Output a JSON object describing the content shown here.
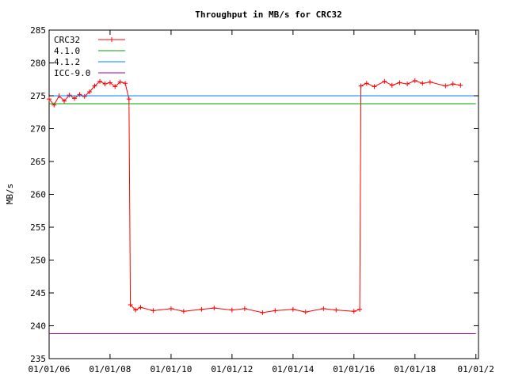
{
  "chart_data": {
    "type": "scatter",
    "title": "Throughput in MB/s for CRC32",
    "xlabel": "",
    "ylabel": "MB/s",
    "ylim": [
      235,
      285
    ],
    "xlim": [
      "2006-01-01",
      "2020-02-01"
    ],
    "y_ticks": [
      235,
      240,
      245,
      250,
      255,
      260,
      265,
      270,
      275,
      280,
      285
    ],
    "x_ticks": [
      {
        "label": "01/01/06",
        "value": "2006-01-01"
      },
      {
        "label": "01/01/08",
        "value": "2008-01-01"
      },
      {
        "label": "01/01/10",
        "value": "2010-01-01"
      },
      {
        "label": "01/01/12",
        "value": "2012-01-01"
      },
      {
        "label": "01/01/14",
        "value": "2014-01-01"
      },
      {
        "label": "01/01/16",
        "value": "2016-01-01"
      },
      {
        "label": "01/01/18",
        "value": "2018-01-01"
      },
      {
        "label": "01/01/2",
        "value": "2020-01-01"
      }
    ],
    "grid": false,
    "legend_position": "top-left",
    "series": [
      {
        "name": "CRC32",
        "color": "#ff0000",
        "style": "linespoints",
        "points": [
          [
            "2006-01-01",
            274.5
          ],
          [
            "2006-03-01",
            273.6
          ],
          [
            "2006-05-01",
            275.0
          ],
          [
            "2006-07-01",
            274.2
          ],
          [
            "2006-09-01",
            275.1
          ],
          [
            "2006-11-01",
            274.6
          ],
          [
            "2007-01-01",
            275.2
          ],
          [
            "2007-03-01",
            274.9
          ],
          [
            "2007-05-01",
            275.6
          ],
          [
            "2007-07-01",
            276.5
          ],
          [
            "2007-09-01",
            277.2
          ],
          [
            "2007-11-01",
            276.8
          ],
          [
            "2008-01-01",
            277.0
          ],
          [
            "2008-03-01",
            276.4
          ],
          [
            "2008-05-01",
            277.1
          ],
          [
            "2008-07-01",
            276.9
          ],
          [
            "2008-08-15",
            274.5
          ],
          [
            "2008-09-01",
            243.2
          ],
          [
            "2008-11-01",
            242.4
          ],
          [
            "2009-01-01",
            242.8
          ],
          [
            "2009-06-01",
            242.3
          ],
          [
            "2010-01-01",
            242.6
          ],
          [
            "2010-06-01",
            242.2
          ],
          [
            "2011-01-01",
            242.5
          ],
          [
            "2011-06-01",
            242.7
          ],
          [
            "2012-01-01",
            242.4
          ],
          [
            "2012-06-01",
            242.6
          ],
          [
            "2013-01-01",
            242.0
          ],
          [
            "2013-06-01",
            242.3
          ],
          [
            "2014-01-01",
            242.5
          ],
          [
            "2014-06-01",
            242.1
          ],
          [
            "2015-01-01",
            242.6
          ],
          [
            "2015-06-01",
            242.4
          ],
          [
            "2016-01-01",
            242.2
          ],
          [
            "2016-03-10",
            242.5
          ],
          [
            "2016-03-25",
            276.5
          ],
          [
            "2016-06-01",
            276.9
          ],
          [
            "2016-09-01",
            276.4
          ],
          [
            "2017-01-01",
            277.2
          ],
          [
            "2017-04-01",
            276.6
          ],
          [
            "2017-07-01",
            277.0
          ],
          [
            "2017-10-01",
            276.8
          ],
          [
            "2018-01-01",
            277.3
          ],
          [
            "2018-04-01",
            276.9
          ],
          [
            "2018-07-01",
            277.1
          ],
          [
            "2019-01-01",
            276.5
          ],
          [
            "2019-04-01",
            276.8
          ],
          [
            "2019-07-01",
            276.6
          ]
        ]
      },
      {
        "name": "4.1.0",
        "color": "#00a000",
        "style": "line",
        "points": [
          [
            "2006-01-01",
            273.8
          ],
          [
            "2020-01-01",
            273.8
          ]
        ]
      },
      {
        "name": "4.1.2",
        "color": "#0080ff",
        "style": "line",
        "points": [
          [
            "2006-01-01",
            275.0
          ],
          [
            "2020-01-01",
            275.0
          ]
        ]
      },
      {
        "name": "ICC-9.0",
        "color": "#a000a0",
        "style": "line",
        "points": [
          [
            "2006-01-01",
            238.8
          ],
          [
            "2020-01-01",
            238.8
          ]
        ]
      }
    ]
  }
}
